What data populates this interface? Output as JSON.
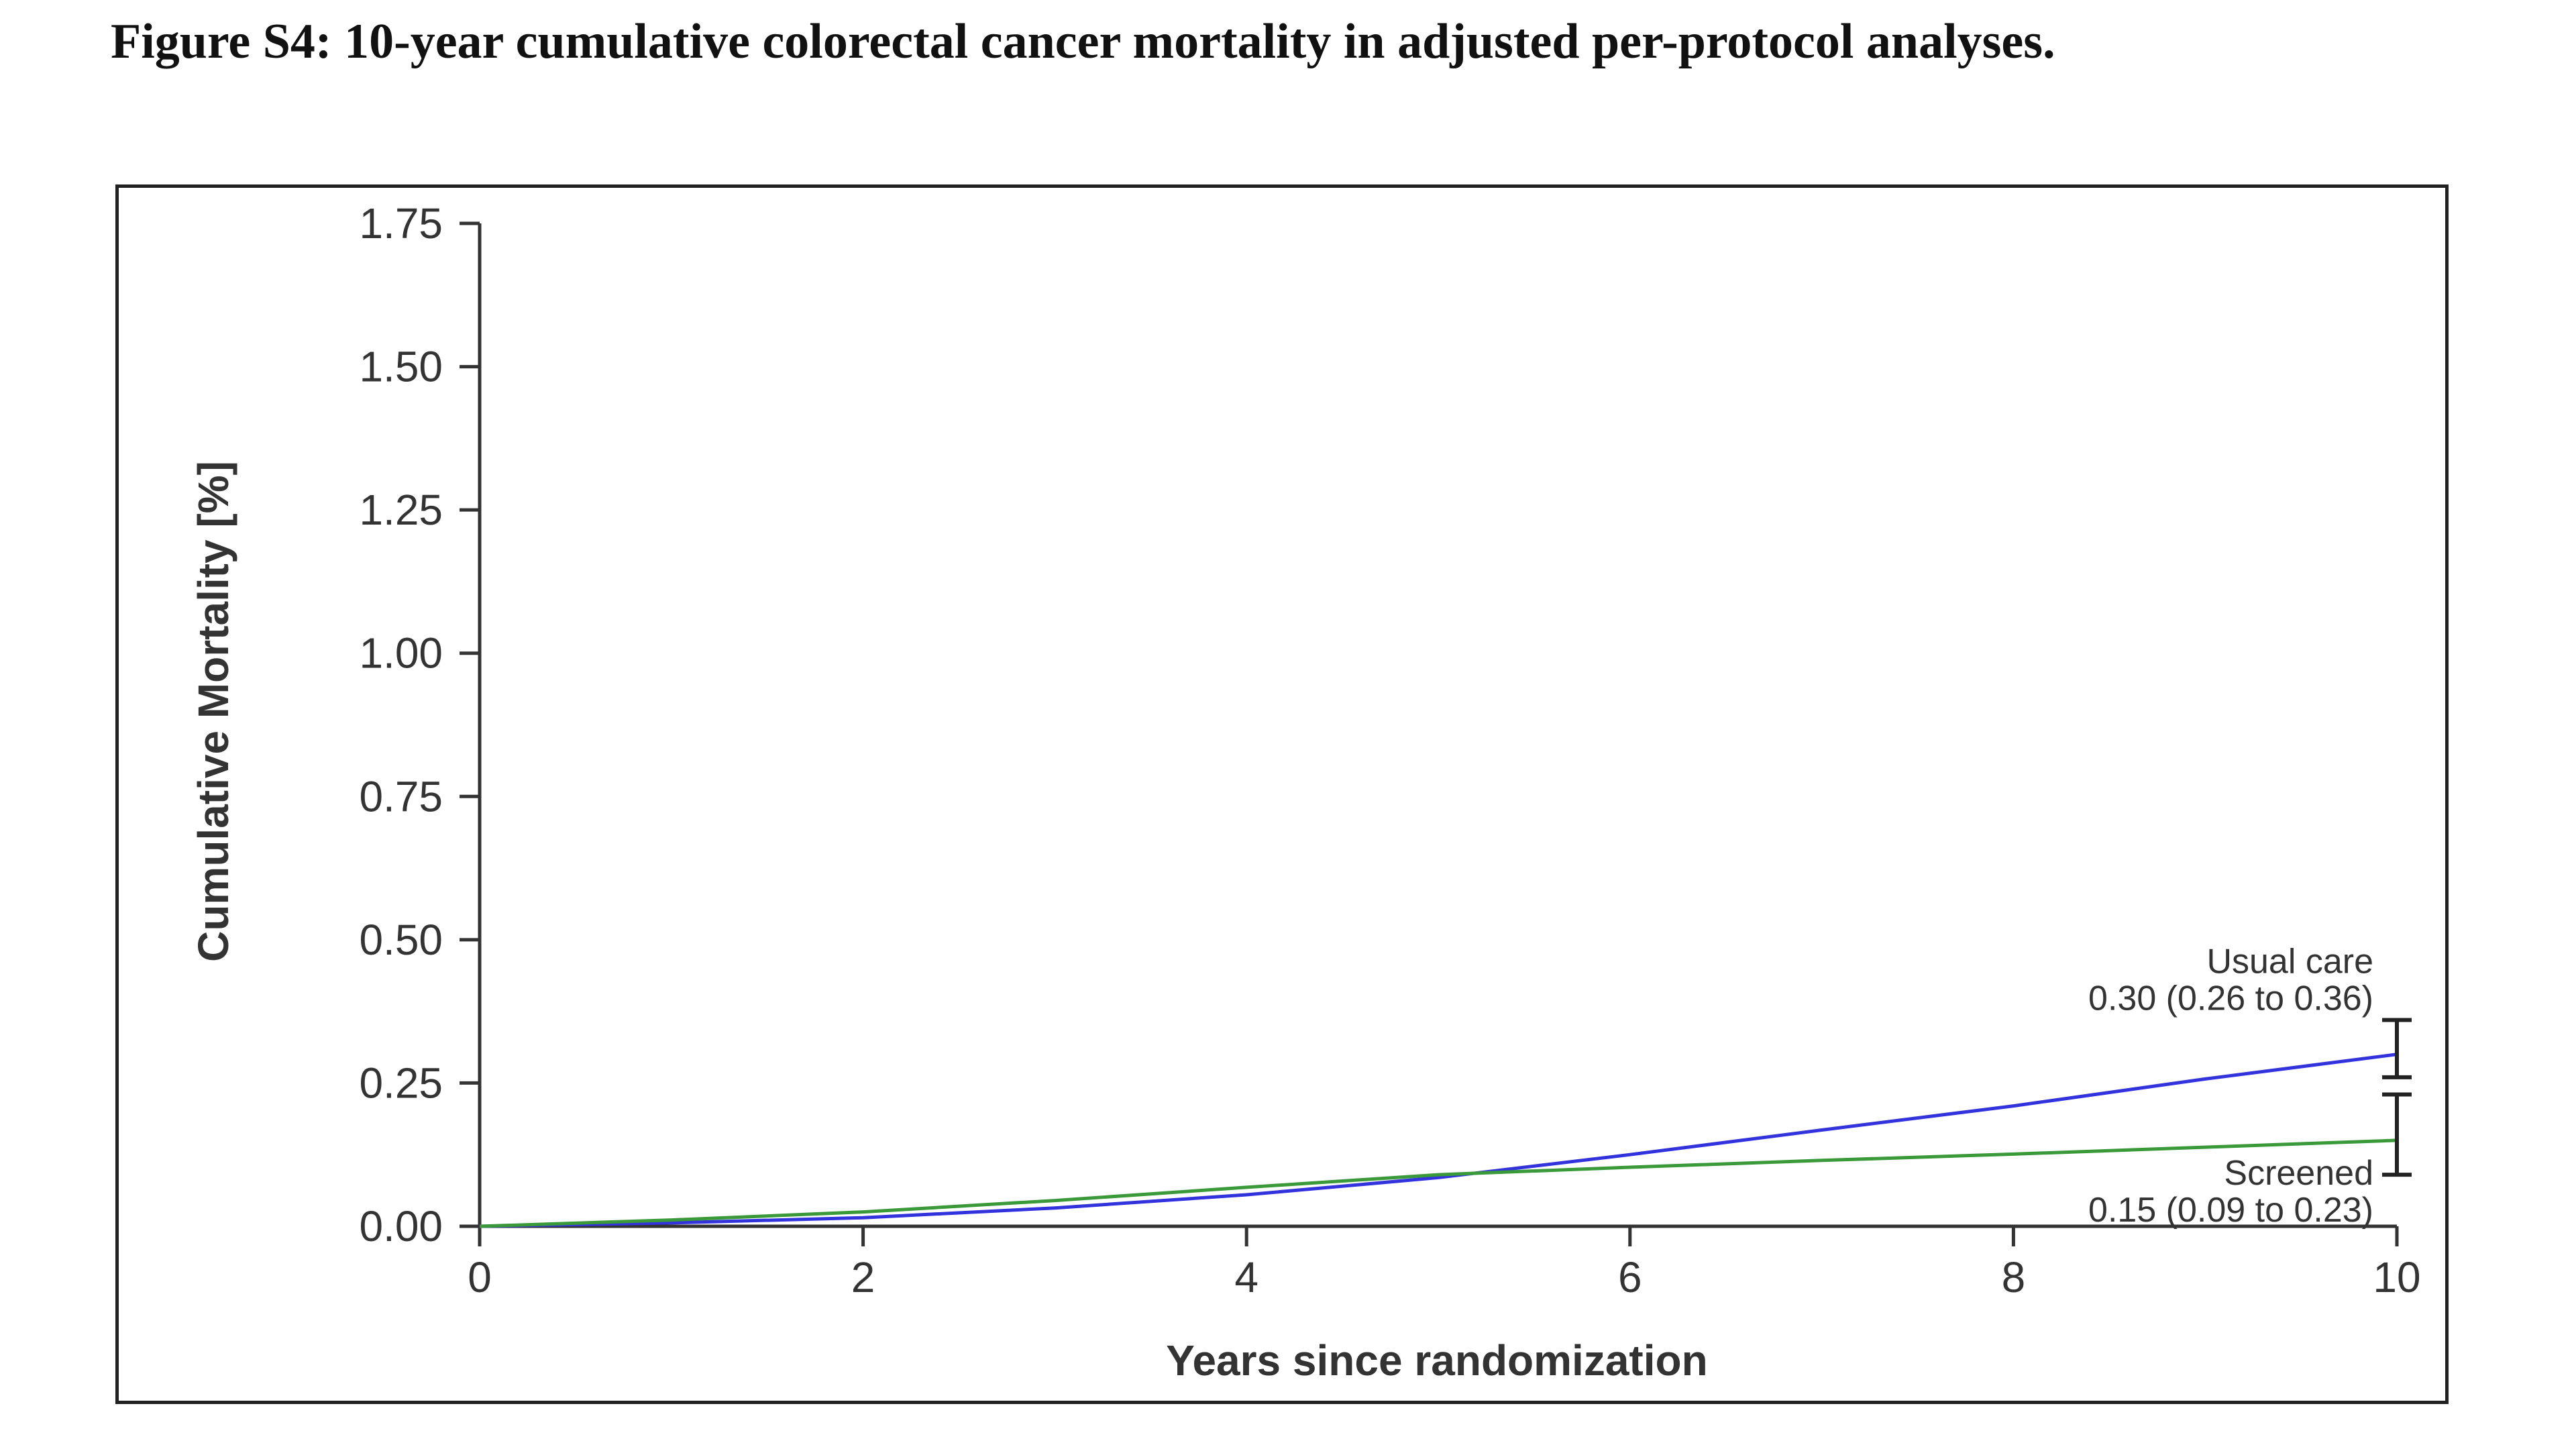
{
  "figure": {
    "title": "Figure S4: 10-year cumulative colorectal cancer mortality in adjusted per-protocol analyses."
  },
  "chart_data": {
    "type": "line",
    "xlabel": "Years since randomization",
    "ylabel": "Cumulative Mortality [%]",
    "xlim": [
      0,
      10
    ],
    "ylim": [
      0,
      1.75
    ],
    "x_ticks": [
      "0",
      "2",
      "4",
      "6",
      "8",
      "10"
    ],
    "y_ticks": [
      "0.00",
      "0.25",
      "0.50",
      "0.75",
      "1.00",
      "1.25",
      "1.50",
      "1.75"
    ],
    "grid": false,
    "series": [
      {
        "name": "Usual care",
        "color": "#3333dd",
        "x": [
          0,
          1,
          2,
          3,
          4,
          5,
          6,
          7,
          8,
          9,
          10
        ],
        "y": [
          0,
          0.006,
          0.015,
          0.032,
          0.055,
          0.085,
          0.125,
          0.168,
          0.21,
          0.257,
          0.3
        ],
        "end_label": "0.30 (0.26 to 0.36)",
        "ci": [
          0.26,
          0.36
        ]
      },
      {
        "name": "Screened",
        "color": "#3a9a3a",
        "x": [
          0,
          1,
          2,
          3,
          4,
          5,
          6,
          7,
          8,
          9,
          10
        ],
        "y": [
          0,
          0.011,
          0.025,
          0.045,
          0.068,
          0.09,
          0.103,
          0.115,
          0.126,
          0.138,
          0.15
        ],
        "end_label": "0.15 (0.09 to 0.23)",
        "ci": [
          0.09,
          0.23
        ]
      }
    ]
  }
}
